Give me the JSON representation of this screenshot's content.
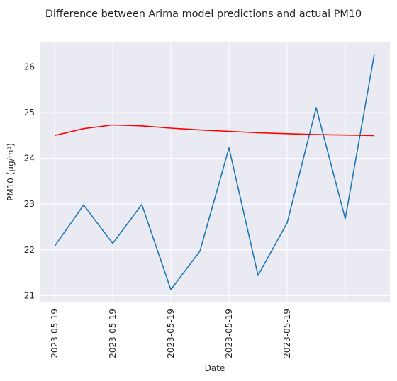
{
  "chart_data": {
    "type": "line",
    "title": "Difference between Arima model predictions and actual PM10",
    "xlabel": "Date",
    "ylabel": "PM10 (µg/m³)",
    "x_tick_labels": [
      "2023-05-19",
      "2023-05-19",
      "2023-05-19",
      "2023-05-19",
      "2023-05-19",
      ""
    ],
    "y_ticks": [
      21,
      22,
      23,
      24,
      25,
      26
    ],
    "ylim": [
      20.85,
      26.55
    ],
    "grid": true,
    "legend": "none",
    "series": [
      {
        "color": "#1f77b4",
        "values": [
          22.08,
          22.98,
          22.14,
          22.99,
          21.13,
          21.97,
          24.23,
          21.44,
          22.59,
          25.11,
          22.68,
          26.28
        ]
      },
      {
        "color": "#ff0000",
        "values": [
          24.5,
          24.65,
          24.73,
          24.71,
          24.66,
          24.62,
          24.59,
          24.56,
          24.54,
          24.52,
          24.51,
          24.5
        ]
      }
    ]
  }
}
